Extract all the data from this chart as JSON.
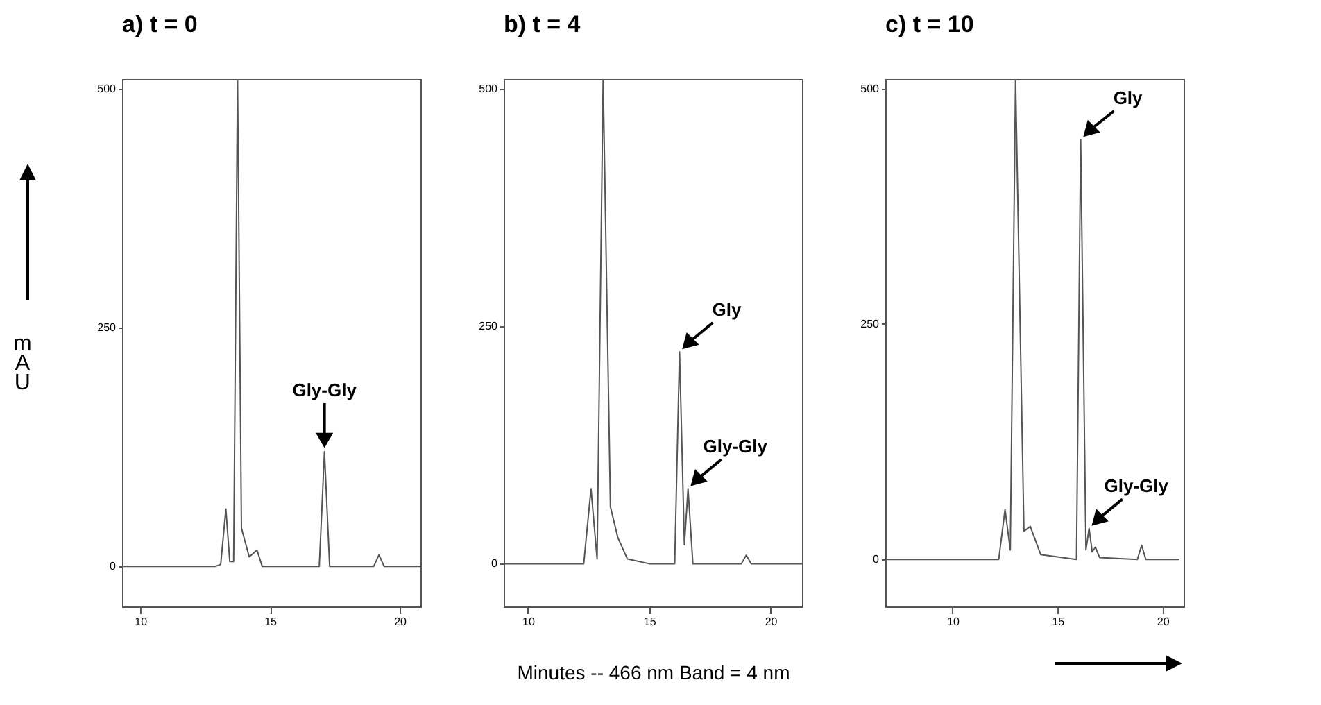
{
  "chart_data": [
    {
      "type": "line",
      "title": "a)    t = 0",
      "ylabel": "mAU",
      "xlim": [
        9.3,
        20.8
      ],
      "xticks": [
        10,
        15,
        20
      ],
      "ylim": [
        -42,
        510
      ],
      "yticks": [
        0,
        250,
        500
      ],
      "series": [
        {
          "color": "#555555",
          "x": [
            9.3,
            12.9,
            13.1,
            13.3,
            13.45,
            13.6,
            13.75,
            13.9,
            14.2,
            14.5,
            14.7,
            16.9,
            17.1,
            17.3,
            19.0,
            19.2,
            19.4,
            20.8
          ],
          "values": [
            0,
            0,
            2,
            60,
            5,
            5,
            510,
            40,
            10,
            17,
            0,
            0,
            120,
            0,
            0,
            12,
            0,
            0
          ]
        }
      ],
      "annotations": [
        {
          "text": "Gly-Gly",
          "x": 17.1,
          "y": 120
        }
      ]
    },
    {
      "type": "line",
      "title": "b)    t = 4",
      "xlabel": "Minutes -- 466 nm Band = 4 nm",
      "xlim": [
        9,
        21.3
      ],
      "xticks": [
        10,
        15,
        20
      ],
      "ylim": [
        -45,
        510
      ],
      "yticks": [
        0,
        250,
        500
      ],
      "series": [
        {
          "color": "#555555",
          "x": [
            9,
            12.3,
            12.6,
            12.85,
            13.1,
            13.4,
            13.7,
            14.1,
            15,
            16.05,
            16.25,
            16.45,
            16.6,
            16.8,
            18.8,
            19.0,
            19.2,
            21.3
          ],
          "values": [
            0,
            0,
            79,
            5,
            510,
            60,
            28,
            5,
            0,
            0,
            223,
            20,
            79,
            0,
            0,
            9,
            0,
            0
          ]
        }
      ],
      "annotations": [
        {
          "text": "Gly",
          "x": 16.25,
          "y": 223
        },
        {
          "text": "Gly-Gly",
          "x": 16.6,
          "y": 79
        }
      ]
    },
    {
      "type": "line",
      "title": "c)    t = 10",
      "xlim": [
        6.8,
        21.0
      ],
      "xticks": [
        10,
        15,
        20
      ],
      "ylim": [
        -50,
        510
      ],
      "yticks": [
        0,
        250,
        500
      ],
      "series": [
        {
          "color": "#555555",
          "x": [
            6.8,
            12.2,
            12.5,
            12.75,
            13.0,
            13.4,
            13.7,
            14.2,
            15.9,
            16.1,
            16.35,
            16.5,
            16.65,
            16.8,
            17.0,
            18.8,
            19.0,
            19.2,
            20.8
          ],
          "values": [
            0,
            0,
            53,
            10,
            510,
            30,
            35,
            5,
            0,
            446,
            10,
            33,
            8,
            13,
            2,
            0,
            15,
            0,
            0
          ]
        }
      ],
      "annotations": [
        {
          "text": "Gly",
          "x": 16.1,
          "y": 446
        },
        {
          "text": "Gly-Gly",
          "x": 16.5,
          "y": 33
        }
      ]
    }
  ]
}
